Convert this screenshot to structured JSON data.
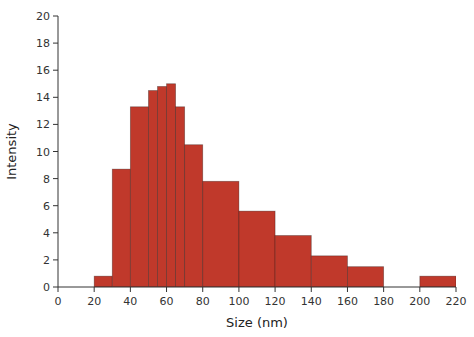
{
  "chart_data": {
    "type": "bar",
    "xlabel": "Size (nm)",
    "ylabel": "Intensity",
    "edges": [
      [
        20,
        30
      ],
      [
        30,
        40
      ],
      [
        40,
        50
      ],
      [
        50,
        55
      ],
      [
        55,
        60
      ],
      [
        60,
        65
      ],
      [
        65,
        70
      ],
      [
        70,
        80
      ],
      [
        80,
        100
      ],
      [
        100,
        120
      ],
      [
        120,
        140
      ],
      [
        140,
        160
      ],
      [
        160,
        180
      ],
      [
        200,
        220
      ]
    ],
    "values": [
      0.8,
      8.7,
      13.3,
      14.5,
      14.8,
      15.0,
      13.3,
      10.5,
      7.8,
      5.6,
      3.8,
      2.3,
      1.5,
      0.8
    ],
    "color": "#c0392b",
    "xlim": [
      0,
      220
    ],
    "ylim": [
      0,
      20
    ],
    "xticks": [
      0,
      20,
      40,
      60,
      80,
      100,
      120,
      140,
      160,
      180,
      200,
      220
    ],
    "yticks": [
      0,
      2,
      4,
      6,
      8,
      10,
      12,
      14,
      16,
      18,
      20
    ],
    "grid": false
  }
}
